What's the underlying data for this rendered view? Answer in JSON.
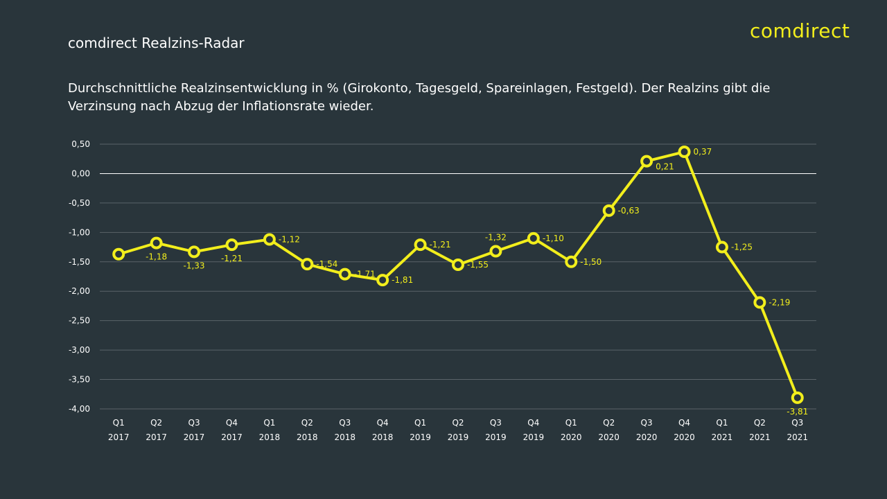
{
  "header": {
    "title": "comdirect Realzins-Radar",
    "logo": "comdirect",
    "subtitle": "Durchschnittliche Realzinsentwicklung in % (Girokonto, Tagesgeld, Spareinlagen, Festgeld). Der Realzins gibt die Verzinsung nach Abzug der Inflationsrate wieder."
  },
  "colors": {
    "background": "#29353b",
    "accent": "#f2ee1c",
    "grid": "#5a6469",
    "zero_line": "#ffffff"
  },
  "chart_data": {
    "type": "line",
    "title": "comdirect Realzins-Radar",
    "xlabel": "",
    "ylabel": "",
    "ylim": [
      -4.0,
      0.5
    ],
    "yticks": [
      0.5,
      0.0,
      -0.5,
      -1.0,
      -1.5,
      -2.0,
      -2.5,
      -3.0,
      -3.5,
      -4.0
    ],
    "ytick_labels": [
      "0,50",
      "0,00",
      "-0,50",
      "-1,00",
      "-1,50",
      "-2,00",
      "-2,50",
      "-3,00",
      "-3,50",
      "-4,00"
    ],
    "grid": true,
    "legend": "none",
    "categories": [
      [
        "Q1",
        "2017"
      ],
      [
        "Q2",
        "2017"
      ],
      [
        "Q3",
        "2017"
      ],
      [
        "Q4",
        "2017"
      ],
      [
        "Q1",
        "2018"
      ],
      [
        "Q2",
        "2018"
      ],
      [
        "Q3",
        "2018"
      ],
      [
        "Q4",
        "2018"
      ],
      [
        "Q1",
        "2019"
      ],
      [
        "Q2",
        "2019"
      ],
      [
        "Q3",
        "2019"
      ],
      [
        "Q4",
        "2019"
      ],
      [
        "Q1",
        "2020"
      ],
      [
        "Q2",
        "2020"
      ],
      [
        "Q3",
        "2020"
      ],
      [
        "Q4",
        "2020"
      ],
      [
        "Q1",
        "2021"
      ],
      [
        "Q2",
        "2021"
      ],
      [
        "Q3",
        "2021"
      ]
    ],
    "series": [
      {
        "name": "Realzins",
        "values": [
          -1.37,
          -1.18,
          -1.33,
          -1.21,
          -1.12,
          -1.54,
          -1.71,
          -1.81,
          -1.21,
          -1.55,
          -1.32,
          -1.1,
          -1.5,
          -0.63,
          0.21,
          0.37,
          -1.25,
          -2.19,
          -3.81
        ],
        "labels": [
          "",
          "-1,18",
          "-1,33",
          "-1,21",
          "-1,12",
          "-1,54",
          "-1,71",
          "-1,81",
          "-1,21",
          "-1,55",
          "-1,32",
          "-1,10",
          "-1,50",
          "-0,63",
          "0,21",
          "0,37",
          "-1,25",
          "-2,19",
          "-3,81"
        ],
        "label_pos": [
          "",
          "below",
          "below",
          "below",
          "right",
          "right",
          "right",
          "right",
          "right",
          "right",
          "above",
          "right",
          "right",
          "right",
          "below-right",
          "right",
          "right",
          "right",
          "below"
        ]
      }
    ]
  }
}
